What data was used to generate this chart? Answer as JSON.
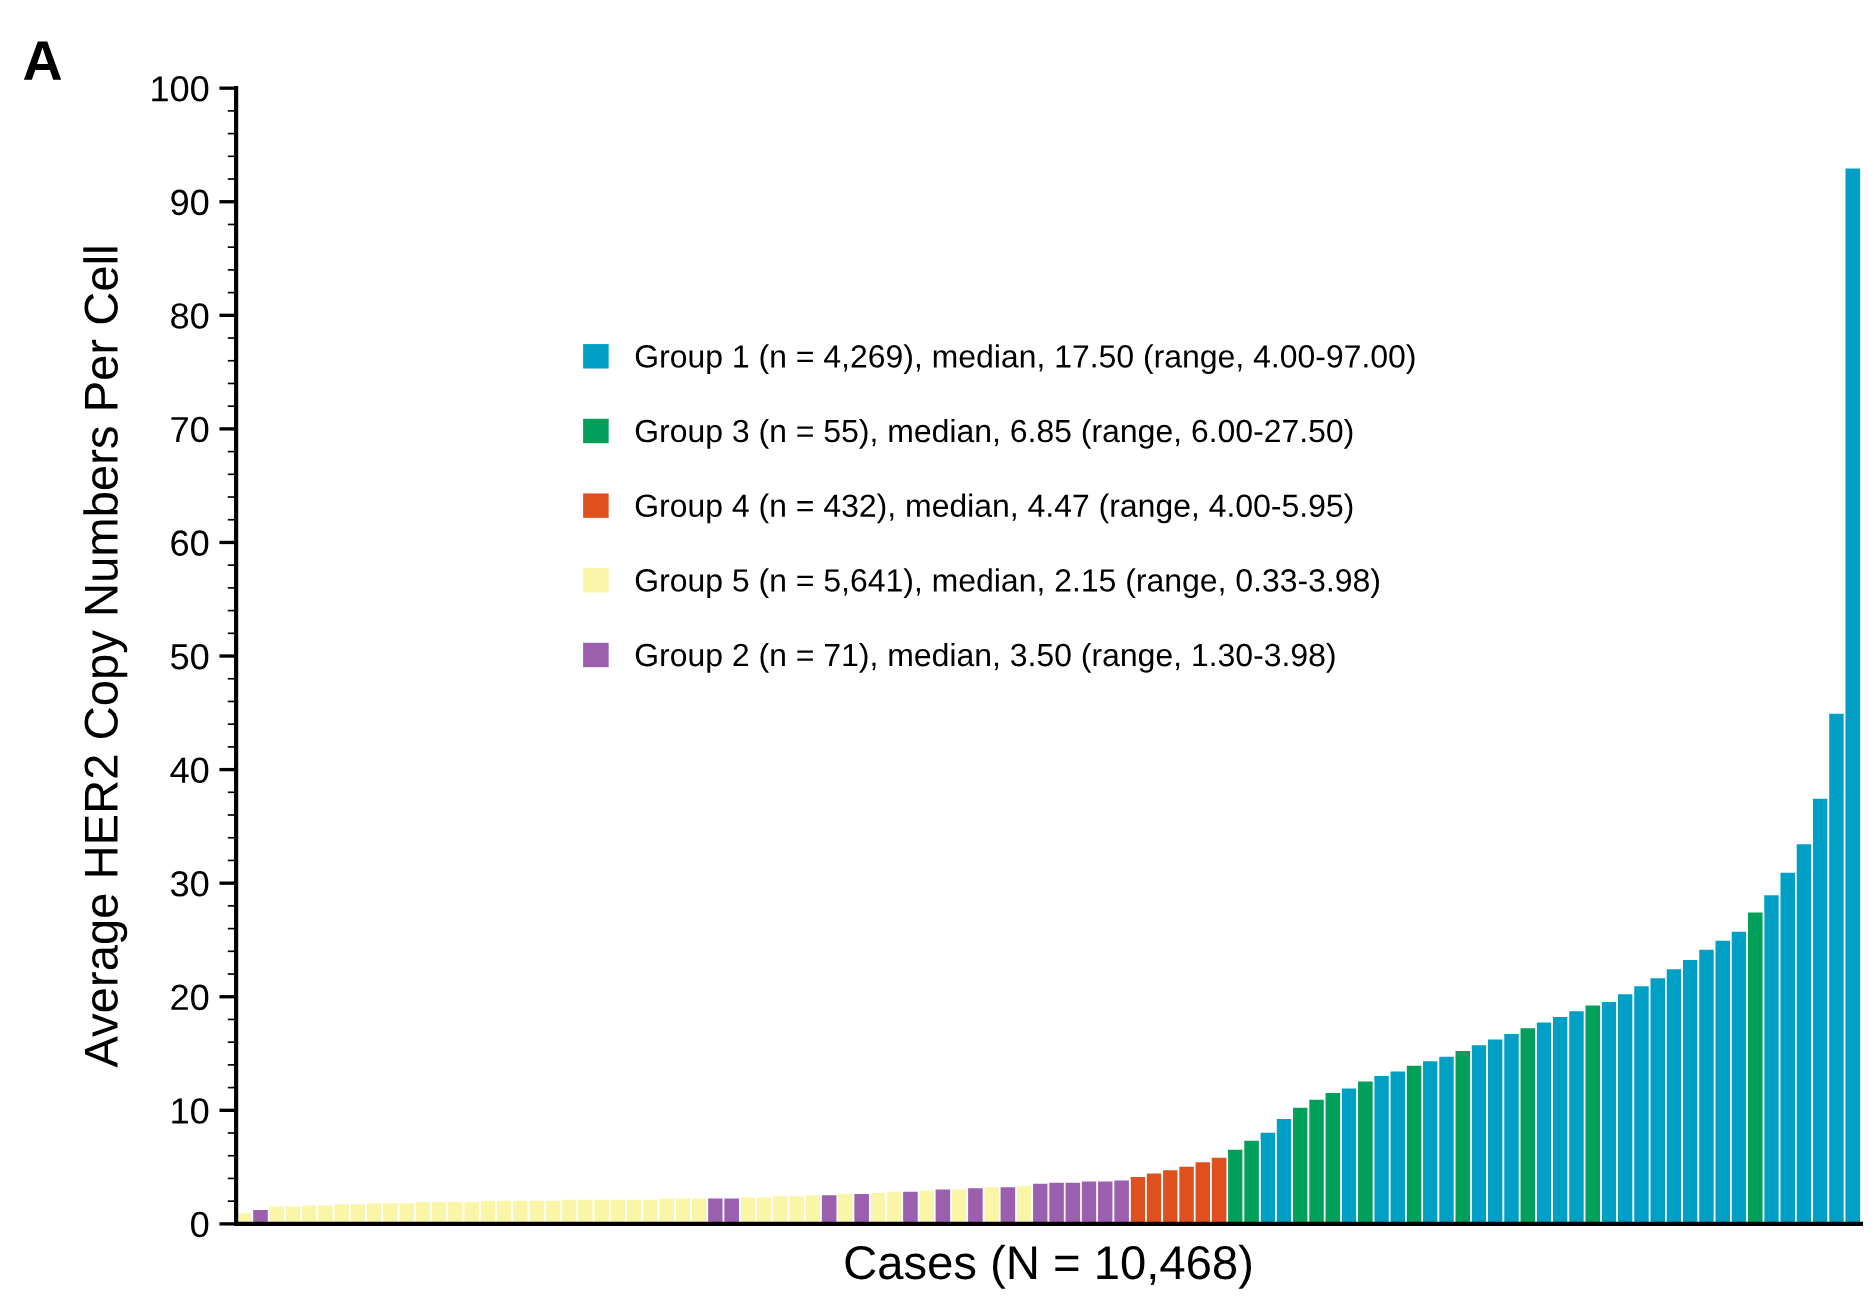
{
  "chart_data": {
    "type": "bar",
    "xlabel": "Cases (N = 10,468)",
    "ylabel": "Average HER2 Copy Numbers Per Cell",
    "annotations": [
      "A"
    ],
    "categories": [
      null,
      null,
      null,
      null,
      null,
      null,
      null,
      null,
      null,
      null,
      null,
      null,
      null,
      null,
      null,
      null,
      null,
      null,
      null,
      null,
      null,
      null,
      null,
      null,
      null,
      null,
      null,
      null,
      null,
      null,
      null,
      null,
      null,
      null,
      null,
      null,
      null,
      null,
      null,
      null,
      null,
      null,
      null,
      null,
      null,
      null,
      null,
      null,
      null,
      null,
      null,
      null,
      null,
      null,
      null,
      null,
      null,
      null,
      null,
      null,
      null,
      null,
      null,
      null,
      null,
      null,
      null,
      null,
      null,
      null,
      null,
      null,
      null,
      null,
      null,
      null,
      null,
      null,
      null,
      null,
      null,
      null,
      null,
      null,
      null,
      null,
      null,
      null,
      null,
      null,
      null,
      null,
      null,
      null,
      null,
      null,
      null,
      null,
      null,
      null
    ],
    "series": [
      {
        "name": "Group 1 (n = 4,269), median, 17.50 (range, 4.00-97.00)",
        "color": "#00a0c6",
        "values": [
          null,
          null,
          null,
          null,
          null,
          null,
          null,
          null,
          null,
          null,
          null,
          null,
          null,
          null,
          null,
          null,
          null,
          null,
          null,
          null,
          null,
          null,
          null,
          null,
          null,
          null,
          null,
          null,
          null,
          null,
          null,
          null,
          null,
          null,
          null,
          null,
          null,
          null,
          null,
          null,
          null,
          null,
          null,
          null,
          null,
          null,
          null,
          null,
          null,
          null,
          null,
          null,
          null,
          null,
          null,
          null,
          null,
          null,
          null,
          null,
          null,
          null,
          null,
          8.1,
          9.3,
          null,
          null,
          null,
          12.0,
          null,
          13.1,
          13.5,
          null,
          14.4,
          14.8,
          null,
          15.8,
          16.3,
          16.8,
          null,
          17.8,
          18.3,
          18.8,
          null,
          19.6,
          20.3,
          21.0,
          21.7,
          22.5,
          23.3,
          24.2,
          25.0,
          25.8,
          null,
          29.0,
          31.0,
          33.5,
          37.5,
          45,
          93
        ]
      },
      {
        "name": "Group 3 (n = 55), median, 6.85 (range, 6.00-27.50)",
        "color": "#00a05a",
        "values": [
          null,
          null,
          null,
          null,
          null,
          null,
          null,
          null,
          null,
          null,
          null,
          null,
          null,
          null,
          null,
          null,
          null,
          null,
          null,
          null,
          null,
          null,
          null,
          null,
          null,
          null,
          null,
          null,
          null,
          null,
          null,
          null,
          null,
          null,
          null,
          null,
          null,
          null,
          null,
          null,
          null,
          null,
          null,
          null,
          null,
          null,
          null,
          null,
          null,
          null,
          null,
          null,
          null,
          null,
          null,
          null,
          null,
          null,
          null,
          null,
          null,
          6.6,
          7.4,
          null,
          null,
          10.3,
          11.0,
          11.6,
          null,
          12.6,
          null,
          null,
          14.0,
          null,
          null,
          15.3,
          null,
          null,
          null,
          17.3,
          null,
          null,
          null,
          19.3,
          null,
          null,
          null,
          null,
          null,
          null,
          null,
          null,
          null,
          27.5,
          null,
          null,
          null,
          null,
          null,
          null
        ]
      },
      {
        "name": "Group 4 (n = 432), median, 4.47 (range, 4.00-5.95)",
        "color": "#e0501e",
        "values": [
          null,
          null,
          null,
          null,
          null,
          null,
          null,
          null,
          null,
          null,
          null,
          null,
          null,
          null,
          null,
          null,
          null,
          null,
          null,
          null,
          null,
          null,
          null,
          null,
          null,
          null,
          null,
          null,
          null,
          null,
          null,
          null,
          null,
          null,
          null,
          null,
          null,
          null,
          null,
          null,
          null,
          null,
          null,
          null,
          null,
          null,
          null,
          null,
          null,
          null,
          null,
          null,
          null,
          null,
          null,
          4.2,
          4.5,
          4.8,
          5.1,
          5.5,
          5.9,
          null,
          null,
          null,
          null,
          null,
          null,
          null,
          null,
          null,
          null,
          null,
          null,
          null,
          null,
          null,
          null,
          null,
          null,
          null,
          null,
          null,
          null,
          null,
          null,
          null,
          null,
          null,
          null,
          null,
          null,
          null,
          null,
          null,
          null,
          null,
          null,
          null,
          null,
          null
        ]
      },
      {
        "name": "Group 5 (n = 5,641), median, 2.15 (range, 0.33-3.98)",
        "color": "#fbf5a8",
        "values": [
          1.0,
          null,
          1.6,
          1.6,
          1.7,
          1.7,
          1.8,
          1.8,
          1.9,
          1.9,
          1.9,
          2.0,
          2.0,
          2.0,
          2.0,
          2.1,
          2.1,
          2.1,
          2.1,
          2.1,
          2.2,
          2.2,
          2.2,
          2.2,
          2.2,
          2.2,
          2.3,
          2.3,
          2.3,
          null,
          null,
          2.4,
          2.4,
          2.5,
          2.5,
          2.6,
          null,
          2.7,
          null,
          2.8,
          2.9,
          null,
          3.0,
          null,
          3.1,
          null,
          3.3,
          null,
          3.4,
          null,
          null,
          null,
          null,
          null,
          null,
          null,
          null,
          null,
          null,
          null,
          null,
          null,
          null,
          null,
          null,
          null,
          null,
          null,
          null,
          null,
          null,
          null,
          null,
          null,
          null,
          null,
          null,
          null,
          null,
          null,
          null,
          null,
          null,
          null,
          null,
          null,
          null,
          null,
          null,
          null,
          null,
          null,
          null,
          null,
          null,
          null,
          null,
          null,
          null,
          null
        ]
      },
      {
        "name": "Group 2 (n = 71), median, 3.50 (range, 1.30-3.98)",
        "color": "#9b5fae",
        "values": [
          null,
          1.3,
          null,
          null,
          null,
          null,
          null,
          null,
          null,
          null,
          null,
          null,
          null,
          null,
          null,
          null,
          null,
          null,
          null,
          null,
          null,
          null,
          null,
          null,
          null,
          null,
          null,
          null,
          null,
          2.3,
          2.3,
          null,
          null,
          null,
          null,
          null,
          2.6,
          null,
          2.7,
          null,
          null,
          2.9,
          null,
          3.1,
          null,
          3.2,
          null,
          3.3,
          null,
          3.6,
          3.7,
          3.7,
          3.8,
          3.8,
          3.9,
          null,
          null,
          null,
          null,
          null,
          null,
          null,
          null,
          null,
          null,
          null,
          null,
          null,
          null,
          null,
          null,
          null,
          null,
          null,
          null,
          null,
          null,
          null,
          null,
          null,
          null,
          null,
          null,
          null,
          null,
          null,
          null,
          null,
          null,
          null,
          null,
          null,
          null,
          null,
          null,
          null,
          null,
          null,
          null,
          null
        ]
      }
    ],
    "ylim": [
      0,
      100
    ],
    "yticks": [
      0,
      10,
      20,
      30,
      40,
      50,
      60,
      70,
      80,
      90,
      100
    ],
    "grid": false,
    "legend": "center"
  }
}
